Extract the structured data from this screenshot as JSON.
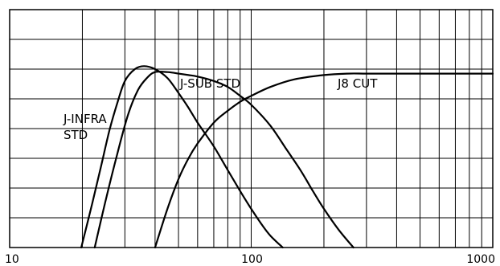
{
  "chart_data": {
    "type": "line",
    "title": "",
    "xlabel": "",
    "ylabel": "",
    "x_scale": "log",
    "xlim": [
      10,
      1000
    ],
    "ylim": [
      0,
      8
    ],
    "grid": true,
    "x_tick_labels": [
      {
        "value": 10,
        "label": "10"
      },
      {
        "value": 100,
        "label": "100"
      },
      {
        "value": 1000,
        "label": "1000"
      }
    ],
    "series": [
      {
        "name": "J-INFRA STD",
        "label_lines": [
          "J-INFRA",
          "STD"
        ],
        "x": [
          19.8,
          22,
          24,
          26,
          28,
          30,
          33,
          36,
          40,
          45,
          50,
          55,
          60,
          70,
          80,
          90,
          100,
          110,
          120,
          135
        ],
        "y": [
          0,
          1.5,
          2.8,
          4.0,
          4.9,
          5.6,
          6.0,
          6.1,
          6.0,
          5.7,
          5.2,
          4.7,
          4.2,
          3.4,
          2.6,
          1.9,
          1.3,
          0.8,
          0.4,
          0
        ]
      },
      {
        "name": "J-SUB STD",
        "label_lines": [
          "J-SUB STD"
        ],
        "x": [
          22.5,
          25,
          28,
          31,
          34,
          37,
          40,
          45,
          50,
          55,
          60,
          70,
          80,
          90,
          100,
          120,
          140,
          160,
          180,
          200,
          230,
          265
        ],
        "y": [
          0,
          1.6,
          3.2,
          4.5,
          5.3,
          5.7,
          5.9,
          5.9,
          5.85,
          5.8,
          5.75,
          5.6,
          5.4,
          5.1,
          4.8,
          4.1,
          3.3,
          2.6,
          1.9,
          1.3,
          0.6,
          0
        ]
      },
      {
        "name": "J8 CUT",
        "label_lines": [
          "J8 CUT"
        ],
        "x": [
          40,
          45,
          50,
          55,
          60,
          70,
          80,
          90,
          100,
          120,
          150,
          200,
          250,
          300,
          400,
          600,
          1000
        ],
        "y": [
          0,
          1.3,
          2.3,
          3.0,
          3.5,
          4.2,
          4.6,
          4.9,
          5.1,
          5.4,
          5.65,
          5.8,
          5.85,
          5.85,
          5.85,
          5.85,
          5.85
        ]
      }
    ]
  }
}
